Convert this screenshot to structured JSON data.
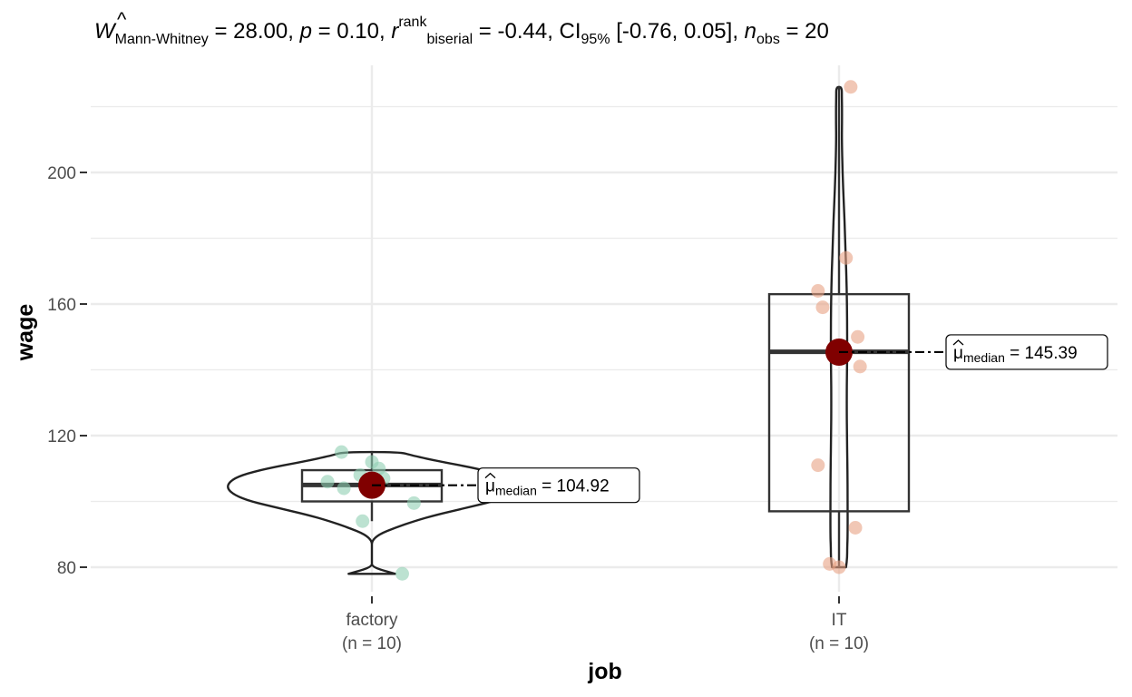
{
  "chart_data": {
    "type": "violin-box-scatter",
    "title": {
      "W_symbol": "W",
      "W_sub": "Mann-Whitney",
      "W_value": " = 28.00, ",
      "p_symbol": "p",
      "p_value": " = 0.10, ",
      "r_symbol": "r",
      "r_hat": "^",
      "r_sup": "rank",
      "r_sub": "biserial",
      "r_value": " = -0.44, CI",
      "ci_sub": "95%",
      "ci_value": " [-0.76, 0.05], ",
      "n_symbol": "n",
      "n_sub": "obs",
      "n_value": " = 20"
    },
    "xlabel": "job",
    "ylabel": "wage",
    "ylim": [
      70,
      230
    ],
    "y_ticks": [
      80,
      120,
      160,
      200
    ],
    "y_minor_ticks": [
      100,
      140,
      180,
      220
    ],
    "grid": true,
    "groups": [
      {
        "category": "factory",
        "n_label": "(n = 10)",
        "color": "#8fcfb2",
        "points": [
          {
            "x": -0.19,
            "y": 106
          },
          {
            "x": -0.12,
            "y": 104
          },
          {
            "x": -0.13,
            "y": 115
          },
          {
            "x": -0.05,
            "y": 108
          },
          {
            "x": 0.0,
            "y": 112
          },
          {
            "x": 0.03,
            "y": 110
          },
          {
            "x": 0.05,
            "y": 107
          },
          {
            "x": -0.04,
            "y": 94
          },
          {
            "x": 0.18,
            "y": 99.5
          },
          {
            "x": 0.13,
            "y": 78
          }
        ],
        "box": {
          "q1": 100,
          "median": 105,
          "q3": 109.5,
          "whisker_low": 94,
          "whisker_high": 115
        },
        "violin": {
          "y": [
            78,
            80,
            82,
            84,
            86,
            88,
            90,
            92,
            94,
            96,
            98,
            100,
            102,
            104,
            106,
            108,
            110,
            112,
            114,
            115
          ],
          "half_width": [
            0.1,
            0.0,
            0.0,
            0.0,
            0.0,
            0.0,
            0.03,
            0.1,
            0.18,
            0.28,
            0.4,
            0.52,
            0.59,
            0.62,
            0.61,
            0.56,
            0.45,
            0.3,
            0.17,
            0.12
          ]
        },
        "median_value": 104.92,
        "median_label": "= 104.92"
      },
      {
        "category": "IT",
        "n_label": "(n = 10)",
        "color": "#e8a284",
        "points": [
          {
            "x": 0.05,
            "y": 226
          },
          {
            "x": 0.03,
            "y": 174
          },
          {
            "x": -0.09,
            "y": 164
          },
          {
            "x": -0.07,
            "y": 159
          },
          {
            "x": 0.08,
            "y": 150
          },
          {
            "x": 0.09,
            "y": 141
          },
          {
            "x": -0.09,
            "y": 111
          },
          {
            "x": 0.07,
            "y": 92
          },
          {
            "x": -0.04,
            "y": 81
          },
          {
            "x": 0.0,
            "y": 80
          }
        ],
        "box": {
          "q1": 97,
          "median": 145.5,
          "q3": 163,
          "whisker_low": 80,
          "whisker_high": 226
        },
        "violin": {
          "y": [
            80,
            83,
            86,
            90,
            100,
            110,
            120,
            130,
            140,
            145,
            150,
            160,
            170,
            180,
            190,
            200,
            210,
            215,
            220,
            223,
            226
          ],
          "half_width": [
            0.03,
            0.035,
            0.035,
            0.037,
            0.037,
            0.036,
            0.034,
            0.033,
            0.034,
            0.035,
            0.035,
            0.034,
            0.031,
            0.026,
            0.021,
            0.015,
            0.012,
            0.013,
            0.013,
            0.012,
            0.012
          ]
        },
        "median_value": 145.39,
        "median_label": "= 145.39"
      }
    ],
    "median_label_mu": "μ",
    "median_label_sub": "median",
    "colors": {
      "centrality": "#800000",
      "grid": "#ebebeb",
      "box": "#333333",
      "axis_text": "#4d4d4d"
    }
  }
}
